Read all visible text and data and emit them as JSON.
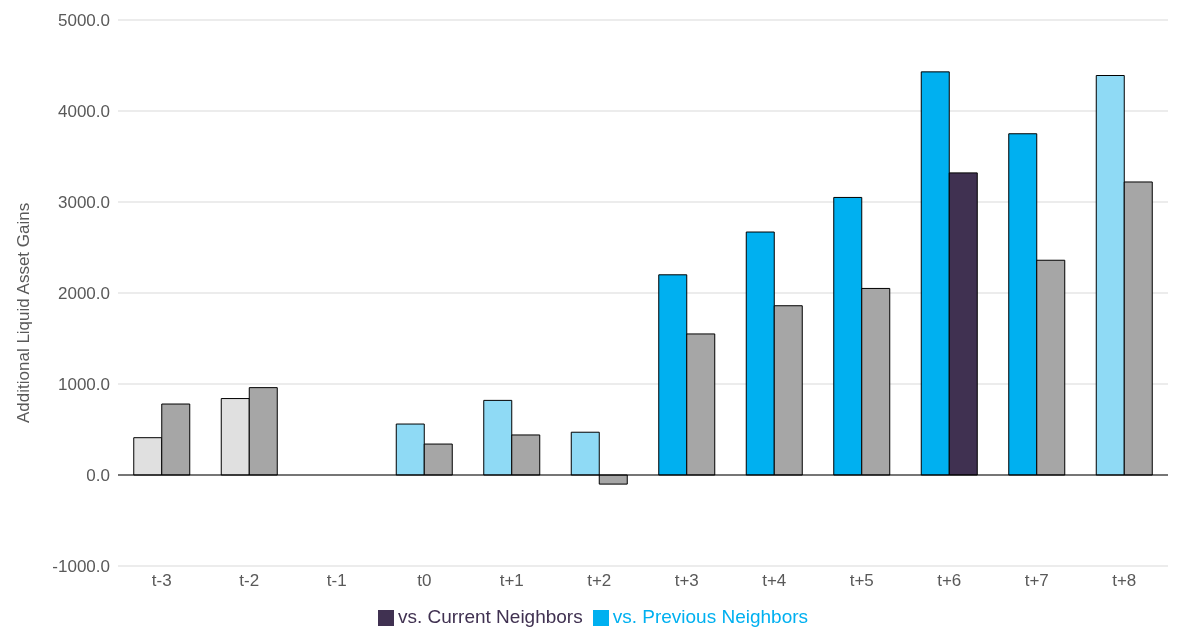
{
  "chart_data": {
    "type": "bar",
    "ylabel": "Additional Liquid Asset Gains",
    "categories": [
      "t-3",
      "t-2",
      "t-1",
      "t0",
      "t+1",
      "t+2",
      "t+3",
      "t+4",
      "t+5",
      "t+6",
      "t+7",
      "t+8"
    ],
    "series": [
      {
        "name": "vs. Previous Neighbors",
        "color": "#00b0f0",
        "colors": [
          "#e0e0e0",
          "#e0e0e0",
          "#e0e0e0",
          "#8fdaf5",
          "#8fdaf5",
          "#8fdaf5",
          "#00b0f0",
          "#00b0f0",
          "#00b0f0",
          "#00b0f0",
          "#00b0f0",
          "#8fdaf5"
        ],
        "values": [
          410,
          840,
          0,
          560,
          820,
          470,
          2200,
          2670,
          3050,
          4430,
          3750,
          4390
        ]
      },
      {
        "name": "vs. Current Neighbors",
        "color": "#403151",
        "colors": [
          "#a6a6a6",
          "#a6a6a6",
          "#a6a6a6",
          "#a6a6a6",
          "#a6a6a6",
          "#a6a6a6",
          "#a6a6a6",
          "#a6a6a6",
          "#a6a6a6",
          "#403151",
          "#a6a6a6",
          "#a6a6a6"
        ],
        "values": [
          780,
          960,
          0,
          340,
          440,
          -100,
          1550,
          1860,
          2050,
          3320,
          2360,
          3220
        ]
      }
    ],
    "ylim": [
      -1000,
      5000
    ],
    "yticks": [
      {
        "value": -1000,
        "label": "-1000.0"
      },
      {
        "value": 0,
        "label": "0.0"
      },
      {
        "value": 1000,
        "label": "1000.0"
      },
      {
        "value": 2000,
        "label": "2000.0"
      },
      {
        "value": 3000,
        "label": "3000.0"
      },
      {
        "value": 4000,
        "label": "4000.0"
      },
      {
        "value": 5000,
        "label": "5000.0"
      }
    ],
    "grid": "y",
    "legend": "bottom"
  }
}
